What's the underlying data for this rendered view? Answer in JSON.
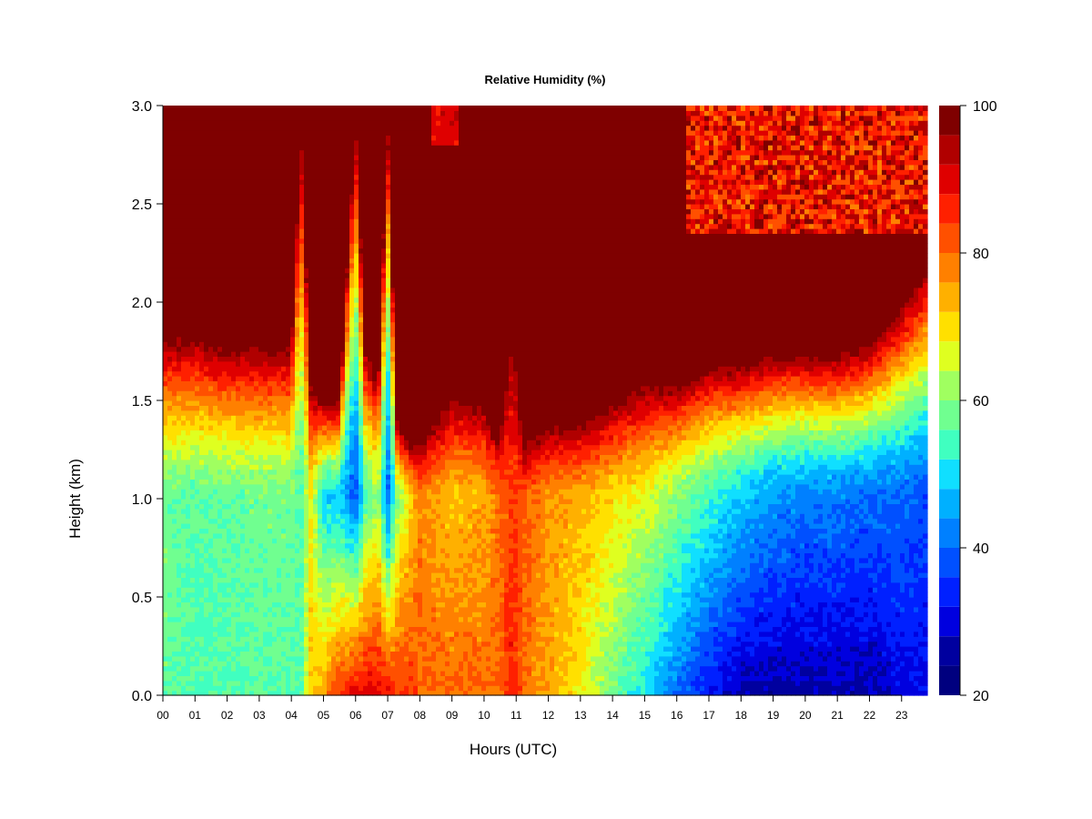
{
  "chart_data": {
    "type": "heatmap",
    "title": "Relative Humidity (%)",
    "xlabel": "Hours (UTC)",
    "ylabel": "Height (km)",
    "x_ticks": [
      "00",
      "01",
      "02",
      "03",
      "04",
      "05",
      "06",
      "07",
      "08",
      "09",
      "10",
      "11",
      "12",
      "13",
      "14",
      "15",
      "16",
      "17",
      "18",
      "19",
      "20",
      "21",
      "22",
      "23"
    ],
    "y_ticks": [
      "0.0",
      "0.5",
      "1.0",
      "1.5",
      "2.0",
      "2.5",
      "3.0"
    ],
    "xlim": [
      0,
      23.8
    ],
    "ylim": [
      0,
      3.0
    ],
    "colorbar": {
      "ticks": [
        "20",
        "40",
        "60",
        "80",
        "100"
      ],
      "range": [
        20,
        100
      ],
      "levels": [
        20,
        24,
        28,
        32,
        36,
        40,
        44,
        48,
        52,
        56,
        60,
        64,
        68,
        72,
        76,
        80,
        84,
        88,
        92,
        96,
        100
      ],
      "colors": [
        "#00007F",
        "#00009F",
        "#0000DF",
        "#0020FF",
        "#0050FF",
        "#0080FF",
        "#00B0FF",
        "#10DFFF",
        "#40FFC0",
        "#70FF90",
        "#A0FF60",
        "#DFFF20",
        "#FFE000",
        "#FFB000",
        "#FF8000",
        "#FF5000",
        "#FF2000",
        "#DF0000",
        "#B00000",
        "#7F0000"
      ]
    },
    "hours": [
      0,
      1,
      2,
      3,
      4,
      4.3,
      4.6,
      5,
      5.5,
      6,
      6.3,
      6.7,
      7,
      7.3,
      7.7,
      8,
      9,
      10,
      10.5,
      10.9,
      11.2,
      12,
      13,
      14,
      15,
      16,
      17,
      18,
      19,
      20,
      21,
      22,
      23,
      23.8
    ],
    "profiles": [
      {
        "hour": 0,
        "rh_at_0km": 58,
        "rh_at_1km": 58,
        "moist_top_km": 1.85
      },
      {
        "hour": 1,
        "rh_at_0km": 55,
        "rh_at_1km": 56,
        "moist_top_km": 1.85
      },
      {
        "hour": 2,
        "rh_at_0km": 55,
        "rh_at_1km": 57,
        "moist_top_km": 1.8
      },
      {
        "hour": 3,
        "rh_at_0km": 56,
        "rh_at_1km": 58,
        "moist_top_km": 1.8
      },
      {
        "hour": 4,
        "rh_at_0km": 56,
        "rh_at_1km": 58,
        "moist_top_km": 1.8
      },
      {
        "hour": 4.3,
        "rh_at_0km": 55,
        "rh_at_1km": 55,
        "moist_top_km": 3.0
      },
      {
        "hour": 4.6,
        "rh_at_0km": 72,
        "rh_at_1km": 68,
        "moist_top_km": 1.6
      },
      {
        "hour": 5,
        "rh_at_0km": 75,
        "rh_at_1km": 50,
        "moist_top_km": 1.5
      },
      {
        "hour": 5.5,
        "rh_at_0km": 85,
        "rh_at_1km": 48,
        "moist_top_km": 1.5
      },
      {
        "hour": 6,
        "rh_at_0km": 90,
        "rh_at_1km": 38,
        "moist_top_km": 3.0
      },
      {
        "hour": 6.3,
        "rh_at_0km": 90,
        "rh_at_1km": 55,
        "moist_top_km": 1.8
      },
      {
        "hour": 6.7,
        "rh_at_0km": 90,
        "rh_at_1km": 62,
        "moist_top_km": 1.6
      },
      {
        "hour": 7,
        "rh_at_0km": 88,
        "rh_at_1km": 40,
        "moist_top_km": 3.0
      },
      {
        "hour": 7.3,
        "rh_at_0km": 85,
        "rh_at_1km": 60,
        "moist_top_km": 1.4
      },
      {
        "hour": 7.7,
        "rh_at_0km": 85,
        "rh_at_1km": 70,
        "moist_top_km": 1.3
      },
      {
        "hour": 8,
        "rh_at_0km": 80,
        "rh_at_1km": 78,
        "moist_top_km": 1.3
      },
      {
        "hour": 9,
        "rh_at_0km": 80,
        "rh_at_1km": 72,
        "moist_top_km": 1.55
      },
      {
        "hour": 10,
        "rh_at_0km": 80,
        "rh_at_1km": 74,
        "moist_top_km": 1.5
      },
      {
        "hour": 10.5,
        "rh_at_0km": 80,
        "rh_at_1km": 80,
        "moist_top_km": 1.3
      },
      {
        "hour": 10.9,
        "rh_at_0km": 88,
        "rh_at_1km": 84,
        "moist_top_km": 2.0
      },
      {
        "hour": 11.2,
        "rh_at_0km": 80,
        "rh_at_1km": 82,
        "moist_top_km": 1.3
      },
      {
        "hour": 12,
        "rh_at_0km": 75,
        "rh_at_1km": 76,
        "moist_top_km": 1.4
      },
      {
        "hour": 13,
        "rh_at_0km": 68,
        "rh_at_1km": 74,
        "moist_top_km": 1.4
      },
      {
        "hour": 14,
        "rh_at_0km": 58,
        "rh_at_1km": 70,
        "moist_top_km": 1.5
      },
      {
        "hour": 15,
        "rh_at_0km": 50,
        "rh_at_1km": 66,
        "moist_top_km": 1.6
      },
      {
        "hour": 16,
        "rh_at_0km": 40,
        "rh_at_1km": 60,
        "moist_top_km": 1.6
      },
      {
        "hour": 17,
        "rh_at_0km": 32,
        "rh_at_1km": 54,
        "moist_top_km": 1.7
      },
      {
        "hour": 18,
        "rh_at_0km": 26,
        "rh_at_1km": 48,
        "moist_top_km": 1.7
      },
      {
        "hour": 19,
        "rh_at_0km": 26,
        "rh_at_1km": 44,
        "moist_top_km": 1.75
      },
      {
        "hour": 20,
        "rh_at_0km": 26,
        "rh_at_1km": 42,
        "moist_top_km": 1.75
      },
      {
        "hour": 21,
        "rh_at_0km": 26,
        "rh_at_1km": 42,
        "moist_top_km": 1.75
      },
      {
        "hour": 22,
        "rh_at_0km": 26,
        "rh_at_1km": 40,
        "moist_top_km": 1.8
      },
      {
        "hour": 23,
        "rh_at_0km": 30,
        "rh_at_1km": 40,
        "moist_top_km": 2.0
      },
      {
        "hour": 23.8,
        "rh_at_0km": 30,
        "rh_at_1km": 38,
        "moist_top_km": 2.2
      }
    ]
  }
}
